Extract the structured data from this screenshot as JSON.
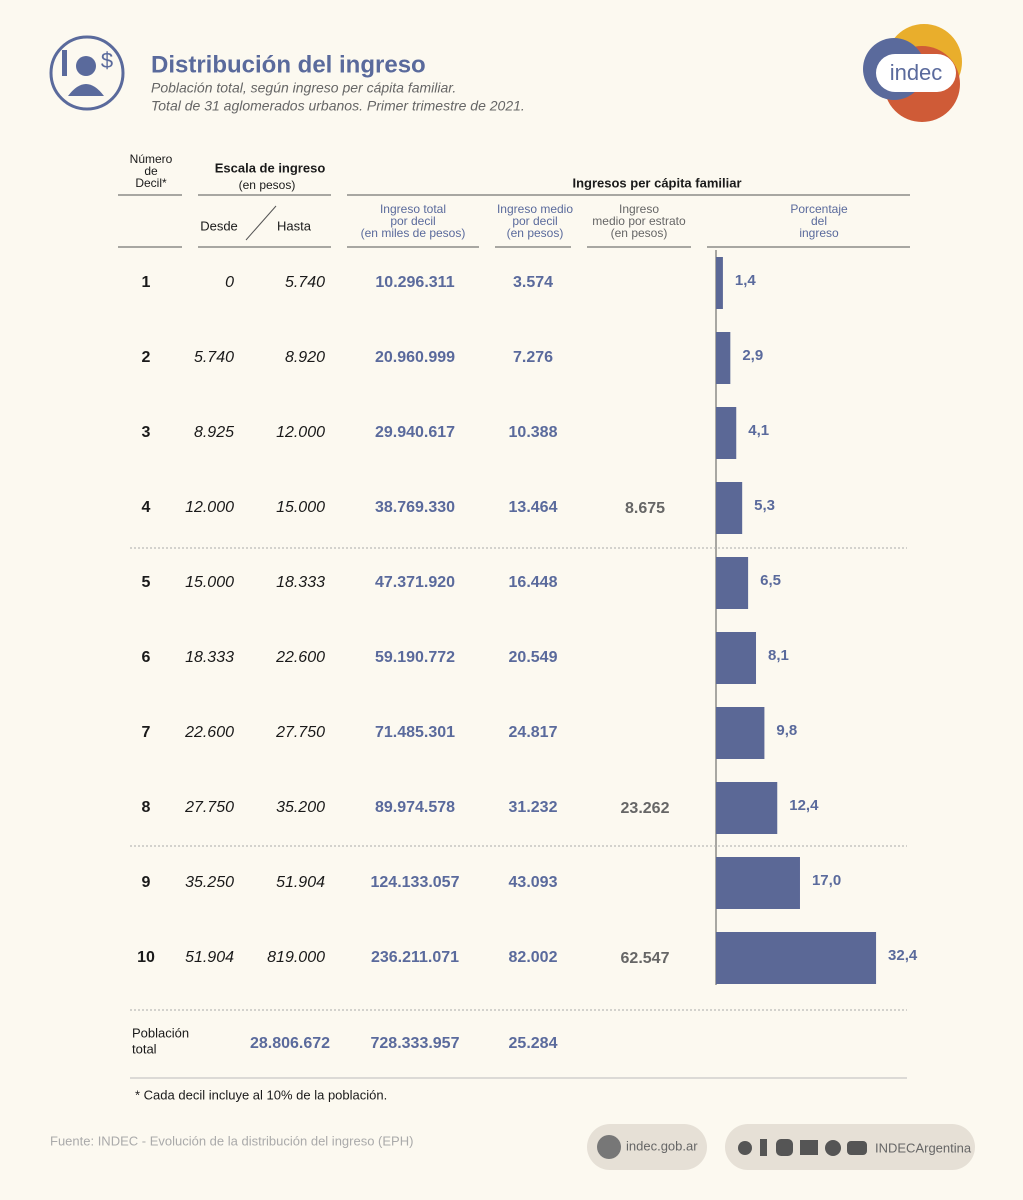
{
  "header": {
    "title": "Distribución del ingreso",
    "subtitle": [
      "Población total, según ingreso per cápita familiar.",
      "Total de 31 aglomerados urbanos. Primer trimestre de 2021."
    ],
    "logo": "indec"
  },
  "columns": {
    "decil": [
      "Número",
      "de",
      "Decil*"
    ],
    "escala": "Escala de ingreso",
    "escala_unit": "(en pesos)",
    "desde": "Desde",
    "hasta": "Hasta",
    "group": "Ingresos per cápita familiar",
    "total": [
      "Ingreso total",
      "por decil",
      "(en miles de pesos)"
    ],
    "medio": [
      "Ingreso medio",
      "por decil",
      "(en pesos)"
    ],
    "estrato": [
      "Ingreso",
      "medio por estrato",
      "(en pesos)"
    ],
    "porcentaje": [
      "Porcentaje",
      "del",
      "ingreso"
    ]
  },
  "rows": [
    {
      "decil": "1",
      "desde": "0",
      "hasta": "5.740",
      "total": "10.296.311",
      "medio": "3.574"
    },
    {
      "decil": "2",
      "desde": "5.740",
      "hasta": "8.920",
      "total": "20.960.999",
      "medio": "7.276"
    },
    {
      "decil": "3",
      "desde": "8.925",
      "hasta": "12.000",
      "total": "29.940.617",
      "medio": "10.388"
    },
    {
      "decil": "4",
      "desde": "12.000",
      "hasta": "15.000",
      "total": "38.769.330",
      "medio": "13.464",
      "estrato": "8.675"
    },
    {
      "decil": "5",
      "desde": "15.000",
      "hasta": "18.333",
      "total": "47.371.920",
      "medio": "16.448"
    },
    {
      "decil": "6",
      "desde": "18.333",
      "hasta": "22.600",
      "total": "59.190.772",
      "medio": "20.549"
    },
    {
      "decil": "7",
      "desde": "22.600",
      "hasta": "27.750",
      "total": "71.485.301",
      "medio": "24.817"
    },
    {
      "decil": "8",
      "desde": "27.750",
      "hasta": "35.200",
      "total": "89.974.578",
      "medio": "31.232",
      "estrato": "23.262"
    },
    {
      "decil": "9",
      "desde": "35.250",
      "hasta": "51.904",
      "total": "124.133.057",
      "medio": "43.093"
    },
    {
      "decil": "10",
      "desde": "51.904",
      "hasta": "819.000",
      "total": "236.211.071",
      "medio": "82.002",
      "estrato": "62.547"
    }
  ],
  "bars": {
    "color": "#5b6896",
    "values": [
      1.4,
      2.9,
      4.1,
      5.3,
      6.5,
      8.1,
      9.8,
      12.4,
      17.0,
      32.4
    ],
    "value_labels": [
      "1,4",
      "2,9",
      "4,1",
      "5,3",
      "6,5",
      "8,1",
      "9,8",
      "12,4",
      "17,0",
      "32,4"
    ]
  },
  "total_row": {
    "label": [
      "Población",
      "total"
    ],
    "poblacion": "28.806.672",
    "total": "728.333.957",
    "medio": "25.284"
  },
  "footnote": "* Cada decil incluye al 10% de la población.",
  "footer": {
    "source": "Fuente: INDEC - Evolución de la distribución del ingreso (EPH)",
    "web": "indec.gob.ar",
    "social": "INDECArgentina"
  }
}
